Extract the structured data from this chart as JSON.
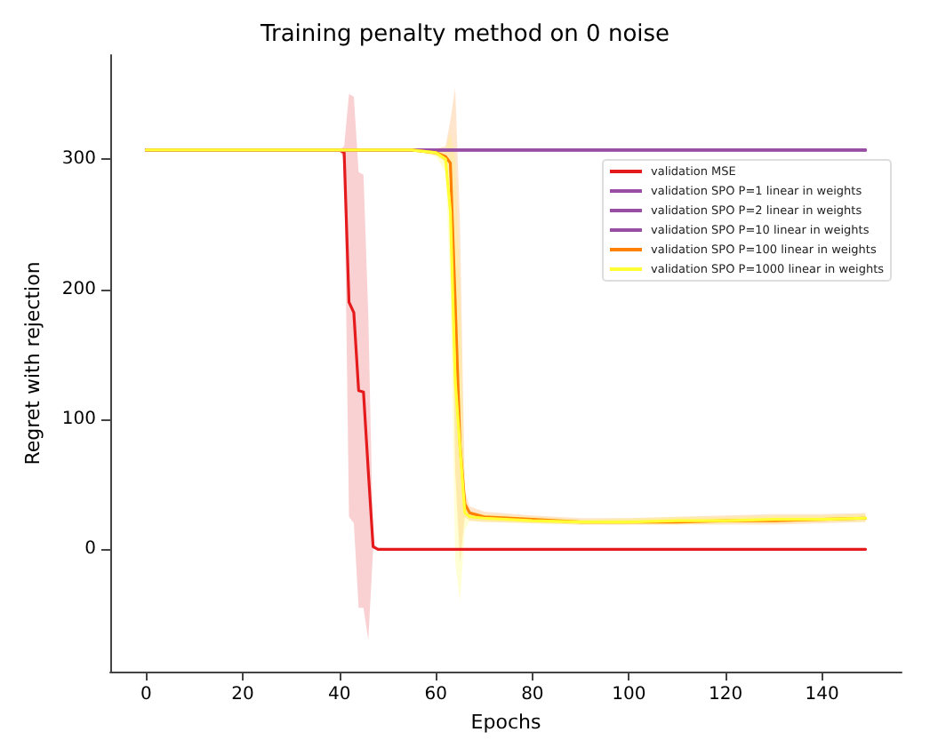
{
  "chart_data": {
    "type": "line",
    "title": "Training penalty method on 0 noise",
    "xlabel": "Epochs",
    "ylabel": "Regret with rejection",
    "xlim": [
      -7.45,
      156.45
    ],
    "xticks": [
      0,
      20,
      40,
      60,
      80,
      100,
      120,
      140
    ],
    "ylim": [
      -94,
      380
    ],
    "yticks": [
      0,
      100,
      200,
      300
    ],
    "grid": false,
    "legend": "top right",
    "marker": "none",
    "line_style": "solid",
    "series": [
      {
        "name": "validation MSE",
        "color": "#e41a1c",
        "x": [
          0,
          40,
          41,
          42,
          43,
          44,
          45,
          46,
          47,
          48,
          149
        ],
        "values": [
          307,
          307,
          305,
          190,
          182,
          122,
          121,
          60,
          2,
          0,
          0
        ],
        "lower": [
          307,
          307,
          300,
          25,
          20,
          -45,
          -45,
          -70,
          0,
          0,
          0
        ],
        "upper": [
          307,
          307,
          310,
          350,
          348,
          290,
          288,
          180,
          5,
          0,
          0
        ]
      },
      {
        "name": "validation SPO P=1 linear in weights",
        "color": "#984ea3",
        "x": [
          0,
          149
        ],
        "values": [
          307,
          307
        ]
      },
      {
        "name": "validation SPO P=2 linear in weights",
        "color": "#984ea3",
        "x": [
          0,
          149
        ],
        "values": [
          307,
          307
        ]
      },
      {
        "name": "validation SPO P=10 linear in weights",
        "color": "#984ea3",
        "x": [
          0,
          149
        ],
        "values": [
          307,
          307
        ]
      },
      {
        "name": "validation SPO P=100 linear in weights",
        "color": "#ff7f00",
        "x": [
          0,
          55,
          60,
          62,
          63,
          64,
          65,
          66,
          67,
          70,
          80,
          90,
          100,
          110,
          120,
          130,
          140,
          149
        ],
        "values": [
          307,
          307,
          305,
          302,
          297,
          190,
          80,
          35,
          28,
          25,
          23,
          21,
          21,
          21,
          22,
          22,
          23,
          24
        ],
        "lower": [
          307,
          307,
          303,
          298,
          285,
          60,
          -10,
          25,
          22,
          21,
          20,
          19,
          19,
          19,
          19,
          19,
          20,
          21
        ],
        "upper": [
          307,
          307,
          308,
          310,
          330,
          355,
          250,
          45,
          33,
          29,
          26,
          24,
          24,
          25,
          26,
          27,
          27,
          28
        ]
      },
      {
        "name": "validation SPO P=1000 linear in weights",
        "color": "#ffff33",
        "x": [
          0,
          55,
          60,
          62,
          63,
          64,
          65,
          66,
          67,
          70,
          80,
          90,
          100,
          110,
          120,
          130,
          140,
          149
        ],
        "values": [
          307,
          307,
          305,
          300,
          260,
          130,
          78,
          28,
          25,
          24,
          22,
          21,
          21,
          22,
          22,
          23,
          23,
          24
        ],
        "lower": [
          307,
          307,
          302,
          290,
          200,
          -10,
          -40,
          15,
          22,
          21,
          20,
          19,
          19,
          19,
          20,
          20,
          21,
          21
        ],
        "upper": [
          307,
          307,
          308,
          306,
          320,
          300,
          200,
          40,
          29,
          27,
          25,
          23,
          24,
          25,
          25,
          26,
          26,
          27
        ]
      }
    ]
  }
}
